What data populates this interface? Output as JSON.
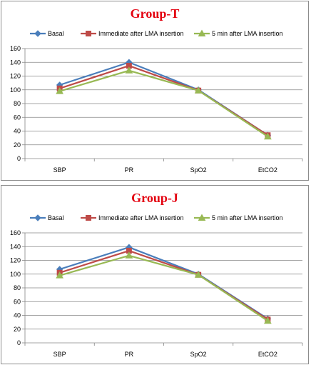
{
  "chart_data": [
    {
      "type": "line",
      "title": "Group-T",
      "categories": [
        "SBP",
        "PR",
        "SpO2",
        "EtCO2"
      ],
      "ylim": [
        0,
        160
      ],
      "yticks": [
        0,
        20,
        40,
        60,
        80,
        100,
        120,
        140,
        160
      ],
      "grid": true,
      "legend_position": "top",
      "series": [
        {
          "name": "Basal",
          "color": "#4a7ebb",
          "marker": "diamond",
          "values": [
            107,
            140,
            100,
            34
          ]
        },
        {
          "name": "Immediate after LMA insertion",
          "color": "#be4b48",
          "marker": "square",
          "values": [
            102,
            135,
            99,
            34
          ]
        },
        {
          "name": "5 min after LMA insertion",
          "color": "#98b954",
          "marker": "triangle",
          "values": [
            98,
            128,
            99,
            32
          ]
        }
      ]
    },
    {
      "type": "line",
      "title": "Group-J",
      "categories": [
        "SBP",
        "PR",
        "SpO2",
        "EtCO2"
      ],
      "ylim": [
        0,
        160
      ],
      "yticks": [
        0,
        20,
        40,
        60,
        80,
        100,
        120,
        140,
        160
      ],
      "grid": true,
      "legend_position": "top",
      "series": [
        {
          "name": "Basal",
          "color": "#4a7ebb",
          "marker": "diamond",
          "values": [
            107,
            139,
            100,
            35
          ]
        },
        {
          "name": "Immediate after LMA insertion",
          "color": "#be4b48",
          "marker": "square",
          "values": [
            102,
            134,
            99,
            34
          ]
        },
        {
          "name": "5 min after LMA insertion",
          "color": "#98b954",
          "marker": "triangle",
          "values": [
            98,
            127,
            99,
            32
          ]
        }
      ]
    }
  ]
}
